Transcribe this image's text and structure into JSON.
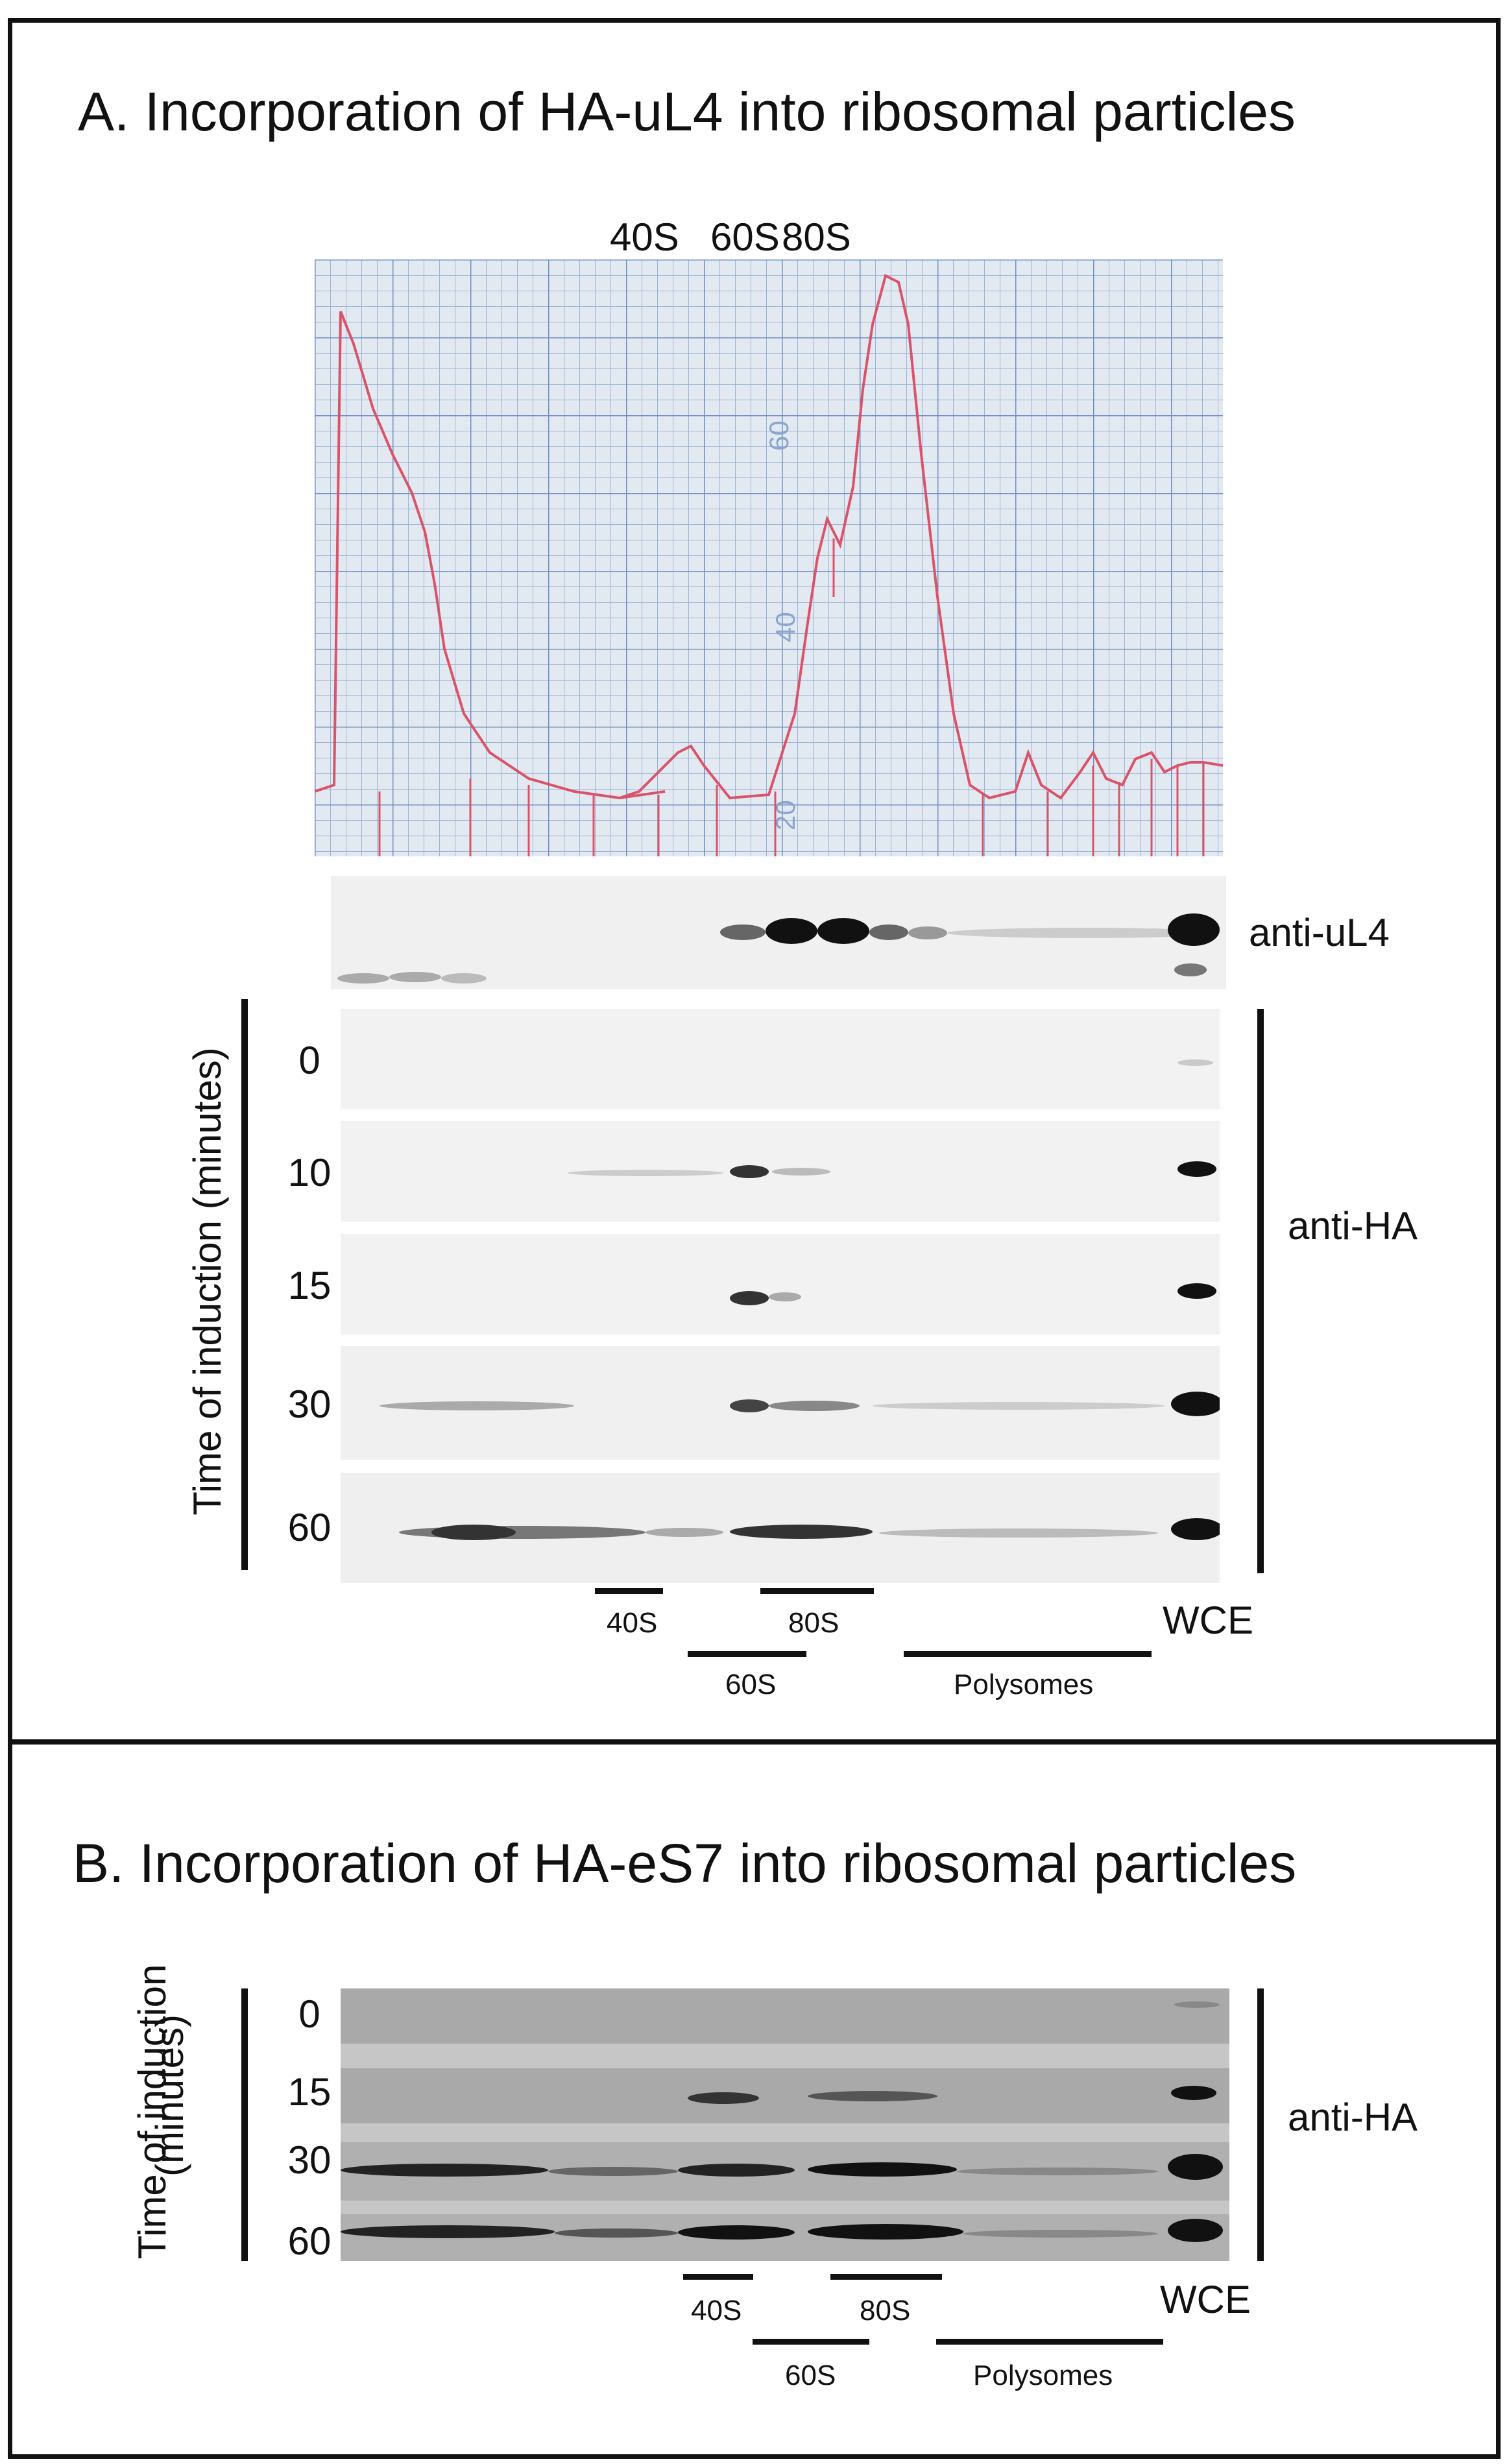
{
  "panel_a": {
    "title": "A. Incorporation of HA-uL4 into ribosomal particles",
    "profile_peaks": {
      "p40": "40S",
      "p60": "60S",
      "p80": "80S"
    },
    "chart_scale_labels": [
      "60",
      "40",
      "20"
    ],
    "uL4_antibody": "anti-uL4",
    "ha_antibody": "anti-HA",
    "y_axis": "Time of induction (minutes)",
    "time_points": [
      "0",
      "10",
      "15",
      "30",
      "60"
    ],
    "fractions": {
      "f40": "40S",
      "f60": "60S",
      "f80": "80S",
      "poly": "Polysomes",
      "wce": "WCE"
    }
  },
  "panel_b": {
    "title": "B. Incorporation of HA-eS7 into ribosomal particles",
    "y_axis_line1": "Time of induction",
    "y_axis_line2": "(minutes)",
    "ha_antibody": "anti-HA",
    "time_points": [
      "0",
      "15",
      "30",
      "60"
    ],
    "fractions": {
      "f40": "40S",
      "f60": "60S",
      "f80": "80S",
      "poly": "Polysomes",
      "wce": "WCE"
    }
  },
  "colors": {
    "grid_paper": "#dfe6ee",
    "grid_line": "#7f9fd0",
    "trace": "#d9536a",
    "band": "#111111",
    "blot_a_bg": "#f1f1f1",
    "blot_b_bg": "#bdbdbd"
  }
}
